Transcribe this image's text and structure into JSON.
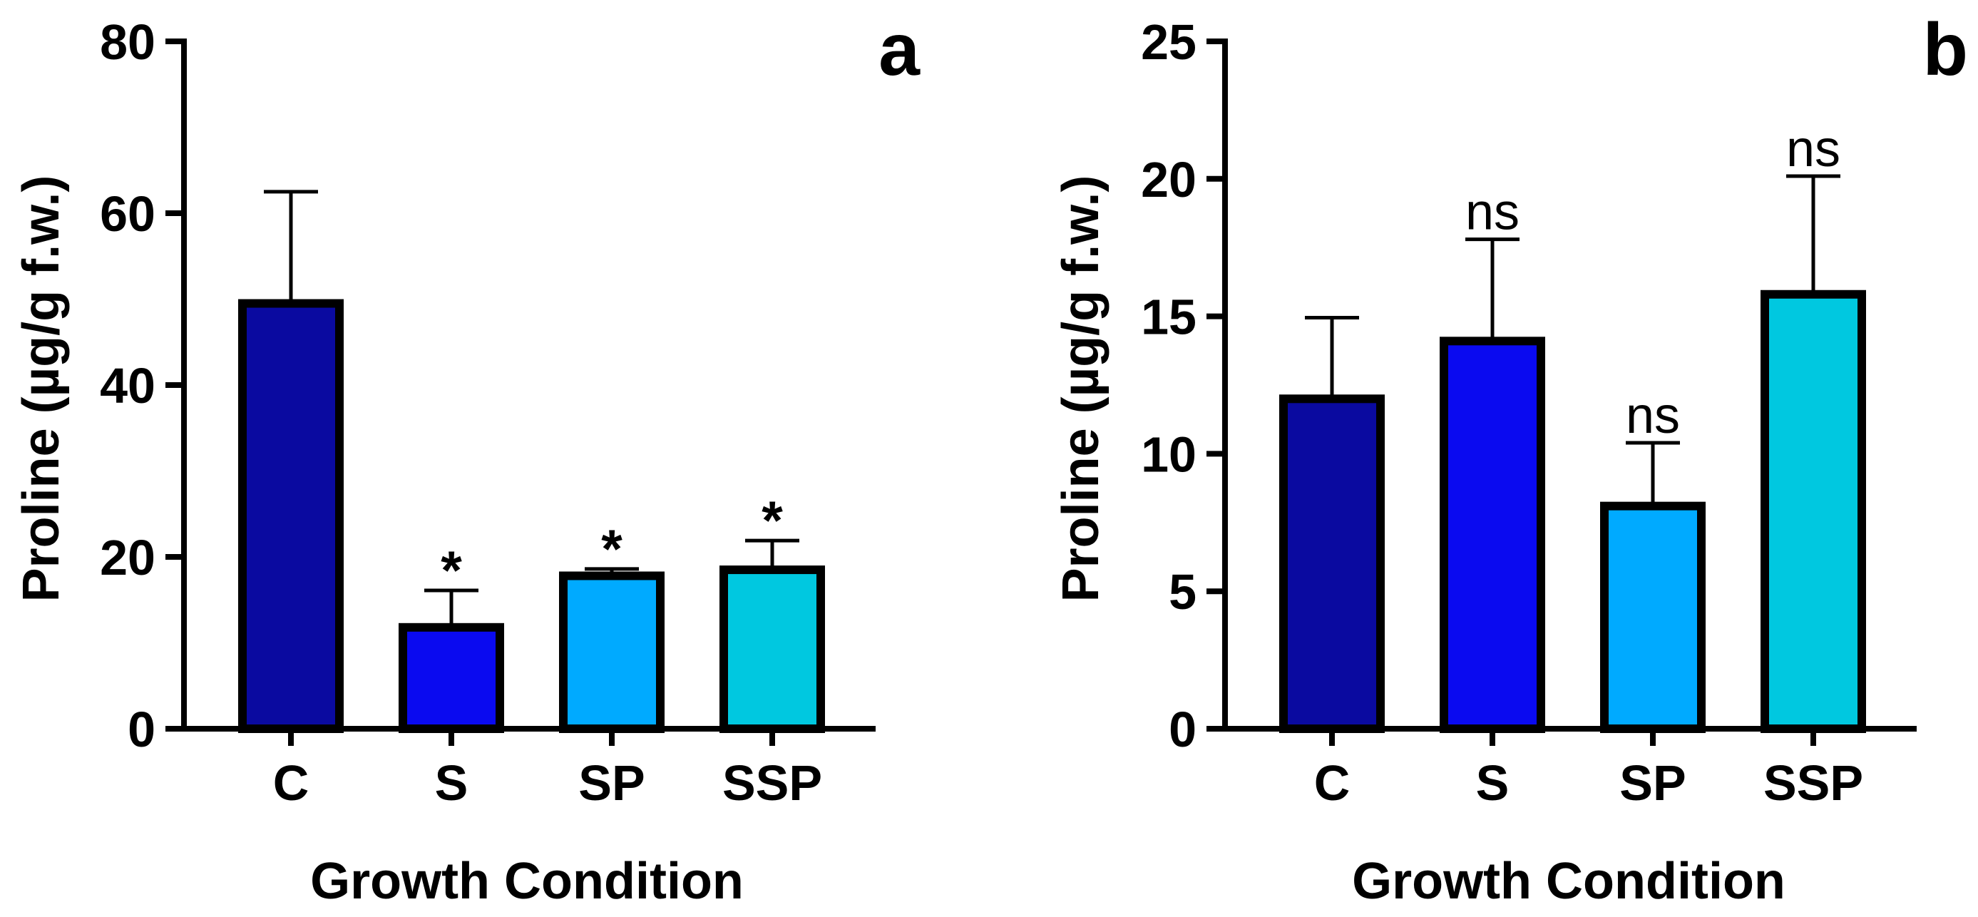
{
  "chart_data": [
    {
      "type": "bar",
      "panel_label": "a",
      "xlabel": "Growth Condition",
      "ylabel": "Proline (µg/g f.w.)",
      "categories": [
        "C",
        "S",
        "SP",
        "SSP"
      ],
      "values": [
        49.5,
        11.8,
        17.8,
        18.5
      ],
      "errors": [
        13.0,
        4.3,
        0.8,
        3.4
      ],
      "significance": [
        "",
        "*",
        "*",
        "*"
      ],
      "colors": [
        "#0a0aa0",
        "#0a0af0",
        "#00aaff",
        "#00c8e0"
      ],
      "ylim": [
        0,
        80
      ],
      "yticks": [
        0,
        20,
        40,
        60,
        80
      ],
      "grid": false
    },
    {
      "type": "bar",
      "panel_label": "b",
      "xlabel": "Growth Condition",
      "ylabel": "Proline (µg/g f.w.)",
      "categories": [
        "C",
        "S",
        "SP",
        "SSP"
      ],
      "values": [
        12.0,
        14.1,
        8.1,
        15.8
      ],
      "errors": [
        2.95,
        3.7,
        2.3,
        4.3
      ],
      "significance": [
        "",
        "ns",
        "ns",
        "ns"
      ],
      "colors": [
        "#0a0aa0",
        "#0a0af0",
        "#00aaff",
        "#00c8e0"
      ],
      "ylim": [
        0,
        25
      ],
      "yticks": [
        0,
        5,
        10,
        15,
        20,
        25
      ],
      "grid": false
    }
  ]
}
